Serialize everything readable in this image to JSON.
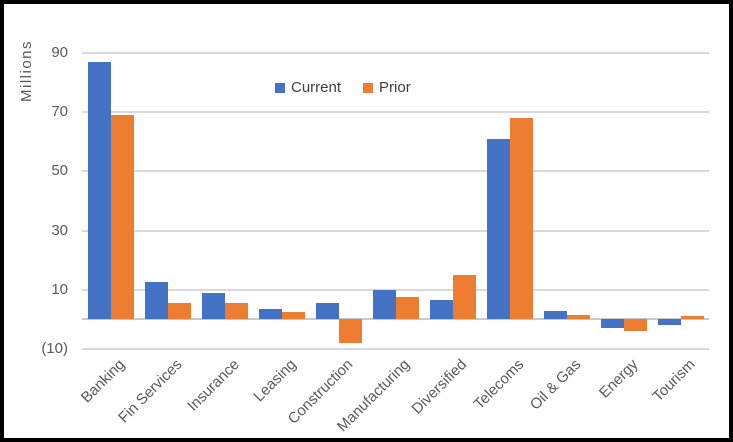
{
  "chart_data": {
    "type": "bar",
    "title": "",
    "ylabel": "Millions",
    "xlabel": "",
    "categories": [
      "Banking",
      "Fin Services",
      "Insurance",
      "Leasing",
      "Construction",
      "Manufacturing",
      "Diversified",
      "Telecoms",
      "Oil & Gas",
      "Energy",
      "Tourism"
    ],
    "series": [
      {
        "name": "Current",
        "color": "#4472C4",
        "values": [
          87,
          12.5,
          9,
          3.5,
          5.5,
          10,
          6.5,
          61,
          3,
          -3,
          -2
        ]
      },
      {
        "name": "Prior",
        "color": "#ED7D31",
        "values": [
          69,
          5.5,
          5.5,
          2.5,
          -8,
          7.5,
          15,
          68,
          1.5,
          -4,
          1
        ]
      }
    ],
    "ylim": [
      -10,
      90
    ],
    "y_tick_values": [
      90,
      70,
      50,
      30,
      10,
      -10
    ],
    "y_tick_labels": [
      "90",
      "70",
      "50",
      "30",
      "10",
      "(10)"
    ],
    "grid": true,
    "legend_position": "top-center",
    "gridline_color": "#d9d9d9",
    "axis_text_color": "#595959",
    "frame_border_color": "#000000"
  }
}
